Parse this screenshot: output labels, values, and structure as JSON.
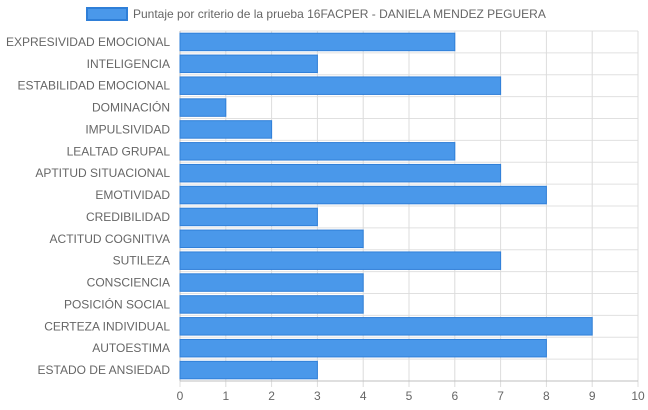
{
  "chart_data": {
    "type": "bar",
    "orientation": "horizontal",
    "legend_position": "top",
    "grid": true,
    "categories": [
      "EXPRESIVIDAD EMOCIONAL",
      "INTELIGENCIA",
      "ESTABILIDAD EMOCIONAL",
      "DOMINACIÓN",
      "IMPULSIVIDAD",
      "LEALTAD GRUPAL",
      "APTITUD SITUACIONAL",
      "EMOTIVIDAD",
      "CREDIBILIDAD",
      "ACTITUD COGNITIVA",
      "SUTILEZA",
      "CONSCIENCIA",
      "POSICIÓN SOCIAL",
      "CERTEZA INDIVIDUAL",
      "AUTOESTIMA",
      "ESTADO DE ANSIEDAD"
    ],
    "series": [
      {
        "name": "Puntaje por criterio de la prueba 16FACPER - DANIELA MENDEZ PEGUERA",
        "values": [
          6,
          3,
          7,
          1,
          2,
          6,
          7,
          8,
          3,
          4,
          7,
          4,
          4,
          9,
          8,
          3
        ],
        "color": "#4a98ea",
        "border_color": "#2f7fd8"
      }
    ],
    "xlim": [
      0,
      10
    ],
    "x_ticks": [
      "0",
      "1",
      "2",
      "3",
      "4",
      "5",
      "6",
      "7",
      "8",
      "9",
      "10"
    ],
    "title": "",
    "xlabel": "",
    "ylabel": ""
  }
}
